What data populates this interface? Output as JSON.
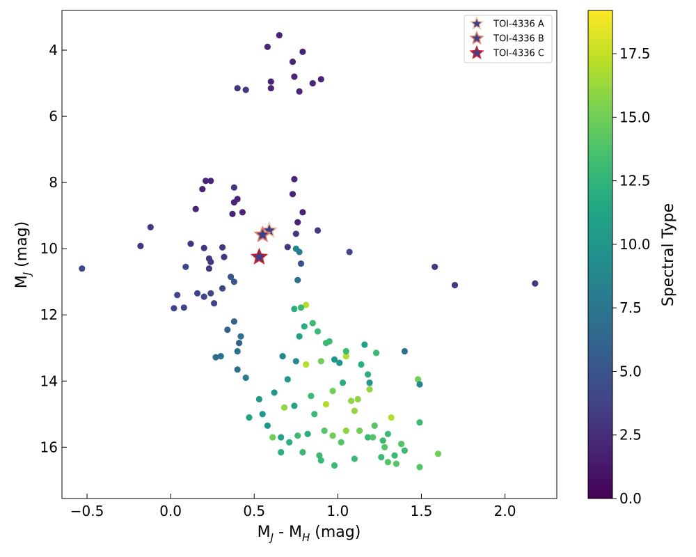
{
  "chart_data": {
    "type": "scatter",
    "title": "",
    "xlabel": "M_J - M_H (mag)",
    "xlabel_main": "M",
    "xlabel_sub1": "J",
    "xlabel_mid": " - M",
    "xlabel_sub2": "H",
    "xlabel_end": " (mag)",
    "ylabel_main": "M",
    "ylabel_sub": "J",
    "ylabel_end": " (mag)",
    "xlim": [
      -0.65,
      2.31
    ],
    "ylim": [
      17.55,
      2.8
    ],
    "y_inverted": true,
    "x_ticks": [
      -0.5,
      0.0,
      0.5,
      1.0,
      1.5,
      2.0
    ],
    "x_tick_labels": [
      "−0.5",
      "0.0",
      "0.5",
      "1.0",
      "1.5",
      "2.0"
    ],
    "y_ticks": [
      4,
      6,
      8,
      10,
      12,
      14,
      16
    ],
    "y_tick_labels": [
      "4",
      "6",
      "8",
      "10",
      "12",
      "14",
      "16"
    ],
    "grid": false,
    "colorbar": {
      "label": "Spectral Type",
      "range": [
        0.0,
        19.2
      ],
      "ticks": [
        0.0,
        2.5,
        5.0,
        7.5,
        10.0,
        12.5,
        15.0,
        17.5
      ],
      "tick_labels": [
        "0.0",
        "2.5",
        "5.0",
        "7.5",
        "10.0",
        "12.5",
        "15.0",
        "17.5"
      ],
      "colormap": "viridis"
    },
    "field_points": [
      [
        0.65,
        3.55,
        2
      ],
      [
        0.58,
        3.9,
        2
      ],
      [
        0.79,
        4.05,
        2
      ],
      [
        0.73,
        4.35,
        2
      ],
      [
        0.74,
        4.8,
        2
      ],
      [
        0.6,
        4.95,
        2
      ],
      [
        0.85,
        5.0,
        2
      ],
      [
        0.9,
        4.88,
        2
      ],
      [
        0.6,
        5.15,
        2
      ],
      [
        0.77,
        5.25,
        2
      ],
      [
        0.4,
        5.15,
        3
      ],
      [
        0.45,
        5.2,
        3
      ],
      [
        0.21,
        7.95,
        2
      ],
      [
        0.24,
        7.95,
        2
      ],
      [
        0.19,
        8.2,
        2
      ],
      [
        0.15,
        8.8,
        2
      ],
      [
        -0.12,
        9.35,
        3
      ],
      [
        -0.18,
        9.92,
        3
      ],
      [
        -0.53,
        10.6,
        4
      ],
      [
        0.12,
        9.85,
        3
      ],
      [
        0.2,
        9.98,
        3
      ],
      [
        0.31,
        9.96,
        3
      ],
      [
        0.23,
        10.3,
        3
      ],
      [
        0.24,
        10.4,
        3
      ],
      [
        0.09,
        10.55,
        4
      ],
      [
        0.23,
        10.6,
        3
      ],
      [
        0.32,
        10.25,
        3
      ],
      [
        0.88,
        9.45,
        3
      ],
      [
        1.07,
        10.1,
        4
      ],
      [
        1.58,
        10.55,
        3
      ],
      [
        1.7,
        11.1,
        3
      ],
      [
        2.18,
        11.05,
        3
      ],
      [
        0.04,
        11.4,
        4
      ],
      [
        0.02,
        11.8,
        4
      ],
      [
        0.08,
        11.78,
        4
      ],
      [
        0.16,
        11.35,
        4
      ],
      [
        0.2,
        11.45,
        4
      ],
      [
        0.26,
        11.65,
        4
      ],
      [
        0.24,
        11.35,
        4
      ],
      [
        0.31,
        11.2,
        4
      ],
      [
        0.34,
        12.45,
        6
      ],
      [
        0.3,
        13.25,
        7
      ],
      [
        0.27,
        13.28,
        7
      ],
      [
        0.4,
        13.1,
        7
      ],
      [
        0.4,
        13.65,
        7
      ],
      [
        0.45,
        13.9,
        8
      ],
      [
        0.47,
        15.1,
        11
      ],
      [
        0.53,
        14.55,
        10
      ],
      [
        0.55,
        15.0,
        10
      ],
      [
        0.58,
        15.35,
        10
      ],
      [
        0.61,
        15.7,
        15
      ],
      [
        0.66,
        16.15,
        12
      ],
      [
        0.66,
        15.7,
        11
      ],
      [
        0.79,
        16.15,
        13
      ],
      [
        0.89,
        16.25,
        13
      ],
      [
        0.9,
        16.4,
        13
      ],
      [
        0.98,
        16.55,
        13
      ],
      [
        1.1,
        16.35,
        13
      ],
      [
        1.26,
        16.3,
        13
      ],
      [
        1.3,
        16.45,
        14
      ],
      [
        1.35,
        16.5,
        14
      ],
      [
        1.34,
        16.25,
        13
      ],
      [
        1.38,
        15.9,
        14
      ],
      [
        1.4,
        16.1,
        13
      ],
      [
        1.49,
        16.6,
        14
      ],
      [
        1.6,
        16.2,
        15
      ],
      [
        1.48,
        13.95,
        15
      ],
      [
        1.49,
        14.1,
        9
      ],
      [
        1.49,
        15.25,
        13
      ],
      [
        1.4,
        13.1,
        7
      ],
      [
        1.32,
        15.1,
        17
      ],
      [
        1.3,
        15.6,
        13
      ],
      [
        1.27,
        15.8,
        13
      ],
      [
        1.22,
        15.35,
        14
      ],
      [
        1.18,
        15.7,
        13
      ],
      [
        1.23,
        13.15,
        13
      ],
      [
        1.16,
        12.9,
        11
      ],
      [
        1.18,
        13.8,
        12
      ],
      [
        1.19,
        14.05,
        10
      ],
      [
        1.19,
        14.25,
        16
      ],
      [
        1.14,
        13.5,
        12
      ],
      [
        1.12,
        14.55,
        16
      ],
      [
        1.08,
        14.6,
        16
      ],
      [
        1.1,
        14.9,
        16
      ],
      [
        1.05,
        13.25,
        17
      ],
      [
        1.03,
        14.05,
        12
      ],
      [
        1.01,
        13.45,
        10
      ],
      [
        0.98,
        13.35,
        10
      ],
      [
        1.05,
        13.1,
        13
      ],
      [
        0.93,
        12.85,
        13
      ],
      [
        0.95,
        12.8,
        13
      ],
      [
        0.88,
        12.5,
        13
      ],
      [
        0.81,
        11.7,
        17
      ],
      [
        0.78,
        11.78,
        13
      ],
      [
        0.74,
        11.82,
        12
      ],
      [
        0.85,
        12.25,
        13
      ],
      [
        0.8,
        12.35,
        12
      ],
      [
        0.77,
        12.65,
        11
      ],
      [
        0.9,
        13.4,
        15
      ],
      [
        0.93,
        14.7,
        17
      ],
      [
        0.97,
        14.3,
        15
      ],
      [
        0.92,
        15.5,
        14
      ],
      [
        0.86,
        15.0,
        13
      ],
      [
        0.82,
        15.6,
        12
      ],
      [
        0.97,
        15.65,
        15
      ],
      [
        1.02,
        15.85,
        14
      ],
      [
        1.05,
        15.5,
        16
      ],
      [
        1.13,
        15.5,
        15
      ],
      [
        1.21,
        15.7,
        14
      ],
      [
        1.28,
        16.0,
        14
      ],
      [
        0.76,
        15.65,
        13
      ],
      [
        0.71,
        15.85,
        12
      ],
      [
        0.74,
        14.75,
        11
      ],
      [
        0.84,
        14.45,
        13
      ],
      [
        0.81,
        13.5,
        17
      ],
      [
        0.75,
        13.4,
        9
      ],
      [
        0.67,
        13.25,
        9
      ],
      [
        0.7,
        13.95,
        10
      ],
      [
        0.62,
        14.35,
        10
      ],
      [
        0.68,
        14.8,
        16
      ],
      [
        0.42,
        12.65,
        7
      ],
      [
        0.41,
        12.85,
        6
      ],
      [
        0.38,
        12.2,
        6
      ],
      [
        0.38,
        11.0,
        5
      ],
      [
        0.36,
        10.85,
        5
      ],
      [
        0.37,
        8.95,
        2
      ],
      [
        0.38,
        8.6,
        2
      ],
      [
        0.38,
        8.15,
        3
      ],
      [
        0.4,
        8.5,
        2
      ],
      [
        0.43,
        8.9,
        2
      ],
      [
        0.7,
        9.95,
        3
      ],
      [
        0.75,
        9.55,
        3
      ],
      [
        0.78,
        10.45,
        5
      ],
      [
        0.76,
        10.95,
        7
      ],
      [
        0.79,
        8.9,
        2
      ],
      [
        0.76,
        9.2,
        2
      ],
      [
        0.74,
        7.9,
        2
      ],
      [
        0.73,
        8.35,
        2
      ],
      [
        0.75,
        10.0,
        9
      ],
      [
        0.77,
        10.1,
        8
      ]
    ],
    "markers": [
      {
        "name": "TOI-4336 A",
        "x": 0.59,
        "y": 9.45,
        "fill": "#433f84",
        "stroke": "#f0c8a8"
      },
      {
        "name": "TOI-4336 B",
        "x": 0.55,
        "y": 9.58,
        "fill": "#433f84",
        "stroke": "#e0806a"
      },
      {
        "name": "TOI-4336 C",
        "x": 0.53,
        "y": 10.25,
        "fill": "#3f3f88",
        "stroke": "#d0202a"
      }
    ],
    "legend_position": "top-right"
  }
}
